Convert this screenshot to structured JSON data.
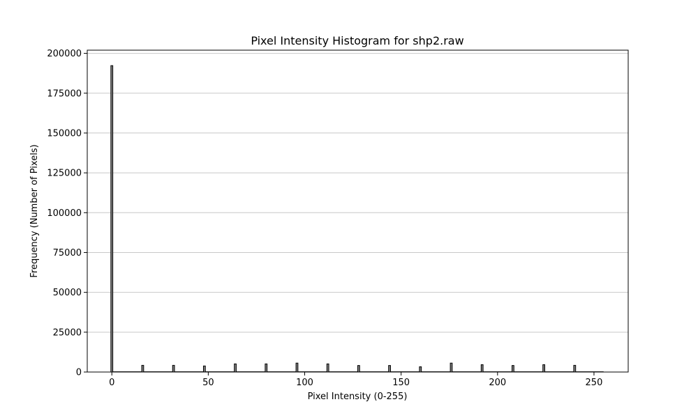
{
  "chart_data": {
    "type": "bar",
    "title": "Pixel Intensity Histogram for shp2.raw",
    "xlabel": "Pixel Intensity (0-255)",
    "ylabel": "Frequency (Number of Pixels)",
    "xlim": [
      -12.75,
      267.75
    ],
    "ylim": [
      0,
      202000
    ],
    "xticks": [
      0,
      50,
      100,
      150,
      200,
      250
    ],
    "yticks": [
      0,
      25000,
      50000,
      75000,
      100000,
      125000,
      150000,
      175000,
      200000
    ],
    "grid": "y",
    "bar_color": "#808080",
    "edge_color": "#000000",
    "series": [
      {
        "x": [
          0,
          16,
          32,
          48,
          64,
          80,
          96,
          112,
          128,
          144,
          160,
          176,
          192,
          208,
          224,
          240
        ],
        "values": [
          192300,
          4200,
          4200,
          3800,
          5100,
          5100,
          5600,
          5100,
          4100,
          4100,
          3300,
          5600,
          4600,
          4100,
          4600,
          4200
        ]
      }
    ]
  }
}
